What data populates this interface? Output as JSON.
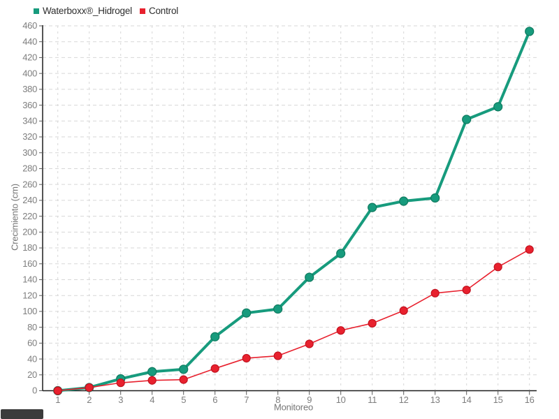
{
  "chart_data": {
    "type": "line",
    "x": [
      1,
      2,
      3,
      4,
      5,
      6,
      7,
      8,
      9,
      10,
      11,
      12,
      13,
      14,
      15,
      16
    ],
    "xlabel": "Monitoreo",
    "ylabel": "Crecimiento (cm)",
    "ylim": [
      0,
      460
    ],
    "ytick_step": 20,
    "grid": true,
    "legend_position": "top-left",
    "series": [
      {
        "name": "Waterboxx®_Hidrogel",
        "color": "#179b7d",
        "marker_stroke": "#0f7a5f",
        "line_width": 4,
        "marker_radius": 6,
        "values": [
          0,
          4,
          15,
          24,
          27,
          68,
          98,
          103,
          143,
          173,
          231,
          239,
          243,
          342,
          358,
          453
        ]
      },
      {
        "name": "Control",
        "color": "#e8212e",
        "marker_stroke": "#c2121f",
        "line_width": 1.6,
        "marker_radius": 5.5,
        "values": [
          0,
          4,
          10,
          13,
          14,
          28,
          41,
          44,
          59,
          76,
          85,
          101,
          123,
          127,
          156,
          178
        ]
      }
    ]
  },
  "style": {
    "background": "#ffffff",
    "grid_color": "#d7d7d7",
    "axis_color": "#1c1c1c",
    "tick_color": "#5a5a5a",
    "tick_label_color": "#7e7e7e",
    "artifact_box_color": "#3b3b3b"
  }
}
